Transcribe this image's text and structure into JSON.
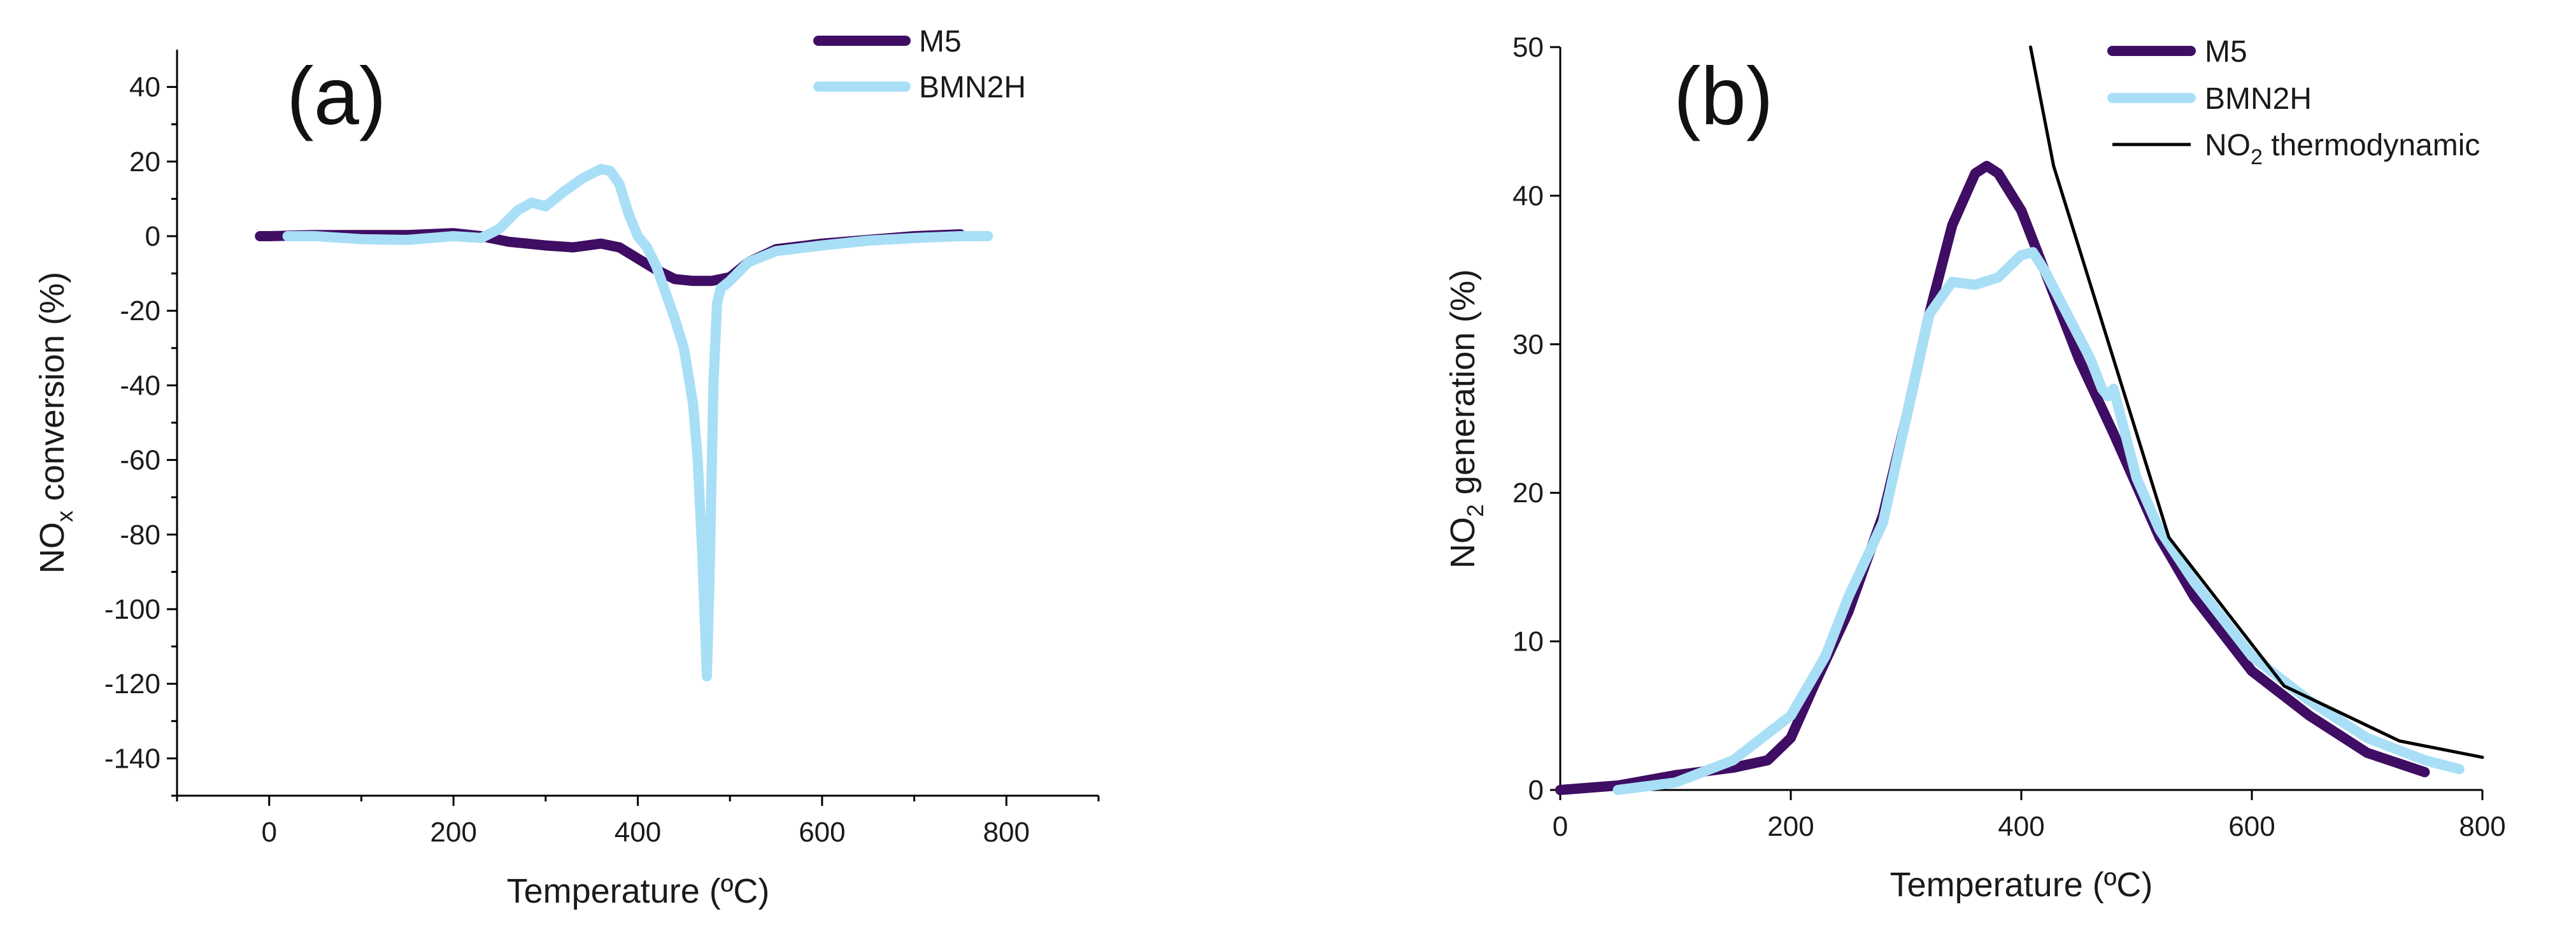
{
  "chart_data": [
    {
      "type": "line",
      "panel_label": "(a)",
      "xlabel": "Temperature (ºC)",
      "ylabel_main": "NO",
      "ylabel_sub": "x",
      "ylabel_rest": " conversion (%)",
      "xlim": [
        -100,
        900
      ],
      "ylim": [
        -150,
        50
      ],
      "x_ticks": [
        0,
        200,
        400,
        600,
        800
      ],
      "y_ticks": [
        40,
        20,
        0,
        -20,
        -40,
        -60,
        -80,
        -100,
        -120,
        -140
      ],
      "legend_position": "top-right",
      "series": [
        {
          "name": "M5",
          "color": "#3f0d63",
          "x": [
            -10,
            0,
            50,
            100,
            150,
            200,
            230,
            260,
            300,
            330,
            360,
            380,
            400,
            420,
            440,
            460,
            480,
            500,
            520,
            550,
            600,
            650,
            700,
            750
          ],
          "y": [
            0,
            0,
            0.3,
            0.3,
            0.3,
            0.8,
            0,
            -1.5,
            -2.5,
            -3,
            -2,
            -3,
            -6,
            -9,
            -11.5,
            -12,
            -12,
            -11,
            -7,
            -3.5,
            -2,
            -1,
            0,
            0.5
          ]
        },
        {
          "name": "BMN2H",
          "color": "#a8dff6",
          "x": [
            20,
            50,
            100,
            150,
            200,
            230,
            250,
            270,
            285,
            300,
            320,
            340,
            360,
            370,
            380,
            390,
            400,
            410,
            420,
            430,
            440,
            450,
            460,
            465,
            470,
            475,
            478,
            482,
            486,
            490,
            495,
            500,
            520,
            550,
            600,
            650,
            700,
            750,
            780
          ],
          "y": [
            0,
            0,
            -0.8,
            -1,
            0,
            -0.5,
            2,
            7,
            9,
            8,
            12,
            15.5,
            18,
            17.5,
            14,
            6,
            0,
            -3,
            -8,
            -15,
            -22,
            -30,
            -45,
            -60,
            -85,
            -118,
            -90,
            -40,
            -18,
            -14,
            -13,
            -12,
            -7,
            -4,
            -2.5,
            -1.2,
            -0.5,
            0,
            0
          ]
        }
      ]
    },
    {
      "type": "line",
      "panel_label": "(b)",
      "xlabel": "Temperature (ºC)",
      "ylabel_main": "NO",
      "ylabel_sub": "2",
      "ylabel_rest": " generation (%)",
      "xlim": [
        0,
        800
      ],
      "ylim": [
        0,
        50
      ],
      "x_ticks": [
        0,
        200,
        400,
        600,
        800
      ],
      "y_ticks": [
        0,
        10,
        20,
        30,
        40,
        50
      ],
      "legend_position": "top-right",
      "series": [
        {
          "name": "M5",
          "color": "#3f0d63",
          "x": [
            0,
            50,
            100,
            150,
            180,
            200,
            220,
            250,
            280,
            300,
            320,
            340,
            360,
            370,
            380,
            400,
            420,
            450,
            480,
            500,
            520,
            550,
            600,
            650,
            700,
            750
          ],
          "y": [
            0,
            0.3,
            1,
            1.5,
            2,
            3.5,
            7,
            12,
            18.5,
            25,
            32,
            38,
            41.5,
            42,
            41.5,
            39,
            35,
            29,
            24,
            20.5,
            17,
            13,
            8,
            5,
            2.5,
            1.2
          ]
        },
        {
          "name": "BMN2H",
          "color": "#a8dff6",
          "x": [
            50,
            100,
            150,
            180,
            200,
            230,
            250,
            280,
            300,
            320,
            340,
            360,
            380,
            400,
            410,
            420,
            440,
            460,
            470,
            475,
            480,
            490,
            500,
            520,
            550,
            600,
            650,
            700,
            750,
            780
          ],
          "y": [
            0,
            0.5,
            2,
            3.8,
            5,
            9,
            13,
            18,
            25,
            32,
            34.2,
            34,
            34.5,
            36,
            36.2,
            35,
            32,
            29,
            27,
            26.5,
            27,
            24,
            21,
            17.5,
            14,
            9,
            6,
            3.5,
            2,
            1.4
          ]
        },
        {
          "name": "NO2 thermodynamic",
          "legend_main": "NO",
          "legend_sub": "2",
          "legend_rest": " thermodynamic",
          "color": "#000000",
          "x": [
            408,
            428,
            528,
            628,
            728,
            800
          ],
          "y": [
            50,
            42,
            17,
            7,
            3.3,
            2.2
          ]
        }
      ]
    }
  ]
}
